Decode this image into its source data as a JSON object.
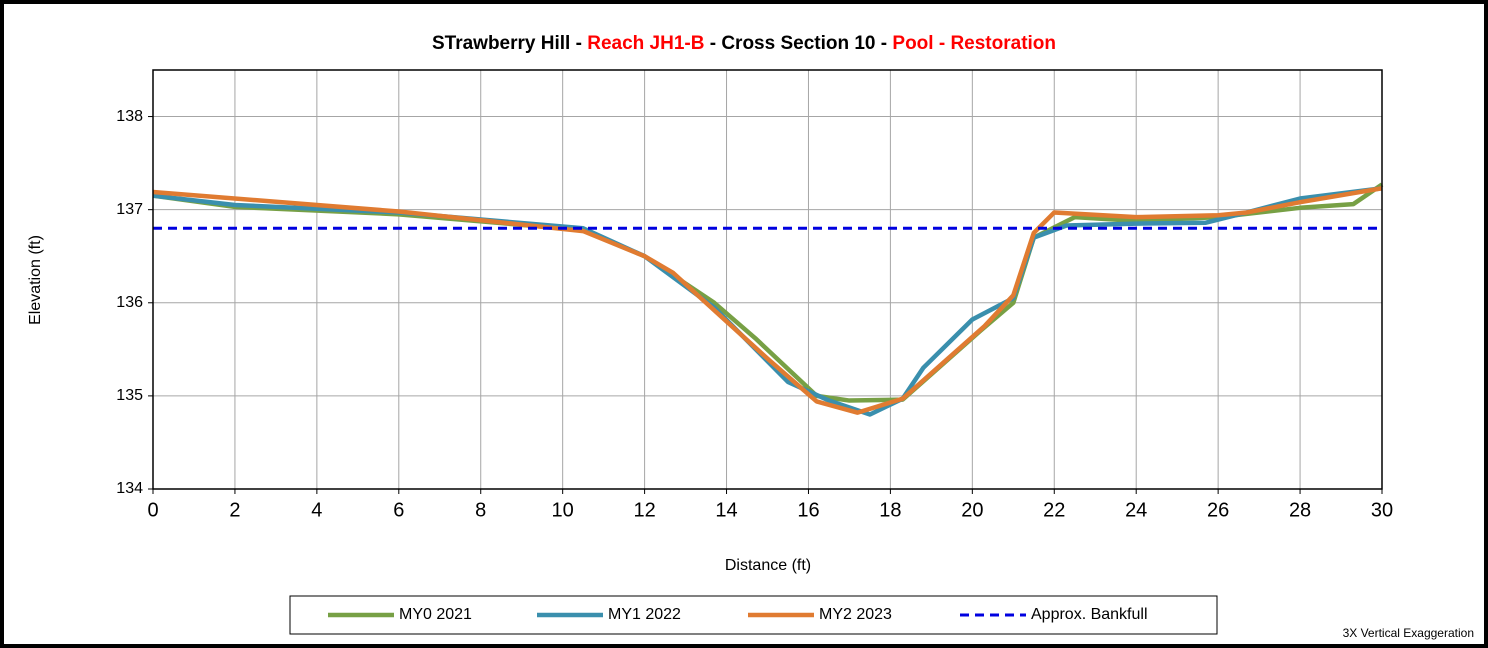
{
  "chart_data": {
    "type": "line",
    "title": [
      {
        "text": "STrawberry Hill - ",
        "color": "#000000"
      },
      {
        "text": "Reach JH1-B",
        "color": "#ff0000"
      },
      {
        "text": " - Cross Section 10 - ",
        "color": "#000000"
      },
      {
        "text": "Pool - Restoration",
        "color": "#ff0000"
      }
    ],
    "x_label": "Distance (ft)",
    "y_label": "Elevation (ft)",
    "annotation": "3X Vertical Exaggeration",
    "xlim": [
      0,
      30
    ],
    "xticks": [
      0,
      2,
      4,
      6,
      8,
      10,
      12,
      14,
      16,
      18,
      20,
      22,
      24,
      26,
      28,
      30
    ],
    "ylim": [
      134,
      138.5
    ],
    "yticks": [
      134,
      135,
      136,
      137,
      138
    ],
    "grid": true,
    "legend": "bottom",
    "series": [
      {
        "name": "MY0 2021",
        "color": "#77a045",
        "dash": false,
        "x": [
          0,
          2,
          6,
          10.5,
          12,
          13.7,
          14.7,
          16.2,
          17,
          18.3,
          20.2,
          21,
          21.5,
          22.5,
          24,
          26,
          28,
          29.3,
          30
        ],
        "values": [
          137.15,
          137.03,
          136.95,
          136.78,
          136.5,
          136.0,
          135.62,
          135.0,
          134.95,
          134.96,
          135.7,
          136.0,
          136.7,
          136.92,
          136.88,
          136.92,
          137.02,
          137.06,
          137.27
        ]
      },
      {
        "name": "MY1 2022",
        "color": "#3a8fad",
        "dash": false,
        "x": [
          0,
          2,
          6,
          10.5,
          12,
          13.7,
          15.5,
          16.5,
          17.5,
          18.3,
          18.8,
          20,
          21,
          21.5,
          22.3,
          24,
          25.7,
          26.7,
          28,
          30
        ],
        "values": [
          137.15,
          137.05,
          136.97,
          136.8,
          136.5,
          135.95,
          135.15,
          134.95,
          134.8,
          134.97,
          135.3,
          135.82,
          136.05,
          136.7,
          136.83,
          136.85,
          136.86,
          136.97,
          137.12,
          137.23
        ]
      },
      {
        "name": "MY2 2023",
        "color": "#e07b31",
        "dash": false,
        "x": [
          0,
          6,
          10.5,
          12,
          12.7,
          14,
          15,
          16.2,
          17.2,
          18.3,
          20.3,
          21,
          21.5,
          22,
          24,
          26,
          26.7,
          28,
          30
        ],
        "values": [
          137.19,
          136.98,
          136.77,
          136.5,
          136.32,
          135.8,
          135.4,
          134.94,
          134.82,
          134.97,
          135.75,
          136.08,
          136.75,
          136.97,
          136.92,
          136.94,
          136.97,
          137.08,
          137.23
        ]
      },
      {
        "name": "Approx. Bankfull",
        "color": "#0000e0",
        "dash": true,
        "x": [
          0,
          30
        ],
        "values": [
          136.8,
          136.8
        ]
      }
    ]
  }
}
